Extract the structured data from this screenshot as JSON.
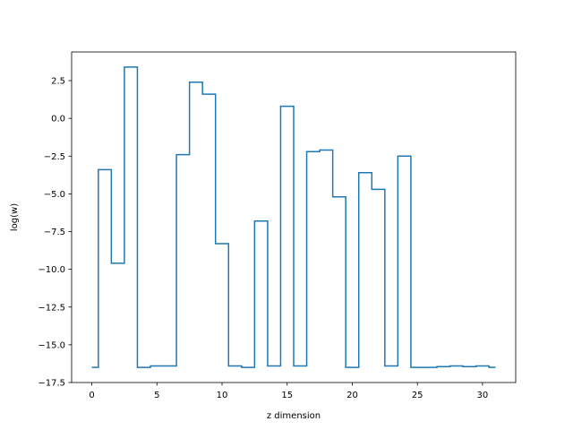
{
  "chart_data": {
    "type": "line",
    "drawstyle": "steps-mid",
    "title": "",
    "xlabel": "z dimension",
    "ylabel": "log(w)",
    "xlim": [
      -1.55,
      32.55
    ],
    "ylim": [
      -17.5,
      4.4
    ],
    "xticks": [
      0,
      5,
      10,
      15,
      20,
      25,
      30
    ],
    "xtick_labels": [
      "0",
      "5",
      "10",
      "15",
      "20",
      "25",
      "30"
    ],
    "yticks": [
      -17.5,
      -15.0,
      -12.5,
      -10.0,
      -7.5,
      -5.0,
      -2.5,
      0.0,
      2.5
    ],
    "ytick_labels": [
      "−17.5",
      "−15.0",
      "−12.5",
      "−10.0",
      "−7.5",
      "−5.0",
      "−2.5",
      "0.0",
      "2.5"
    ],
    "grid": false,
    "line_color": "#1f77b4",
    "series": [
      {
        "x": [
          0,
          1,
          2,
          3,
          4,
          5,
          6,
          7,
          8,
          9,
          10,
          11,
          12,
          13,
          14,
          15,
          16,
          17,
          18,
          19,
          20,
          21,
          22,
          23,
          24,
          25,
          26,
          27,
          28,
          29,
          30,
          31
        ],
        "values": [
          -16.5,
          -3.4,
          -9.6,
          3.4,
          -16.5,
          -16.4,
          -16.4,
          -2.4,
          2.4,
          1.6,
          -8.3,
          -16.4,
          -16.5,
          -6.8,
          -16.4,
          0.8,
          -16.4,
          -2.2,
          -2.1,
          -5.2,
          -16.5,
          -3.6,
          -4.7,
          -16.4,
          -2.5,
          -16.5,
          -16.5,
          -16.45,
          -16.4,
          -16.45,
          -16.4,
          -16.5
        ]
      }
    ]
  }
}
